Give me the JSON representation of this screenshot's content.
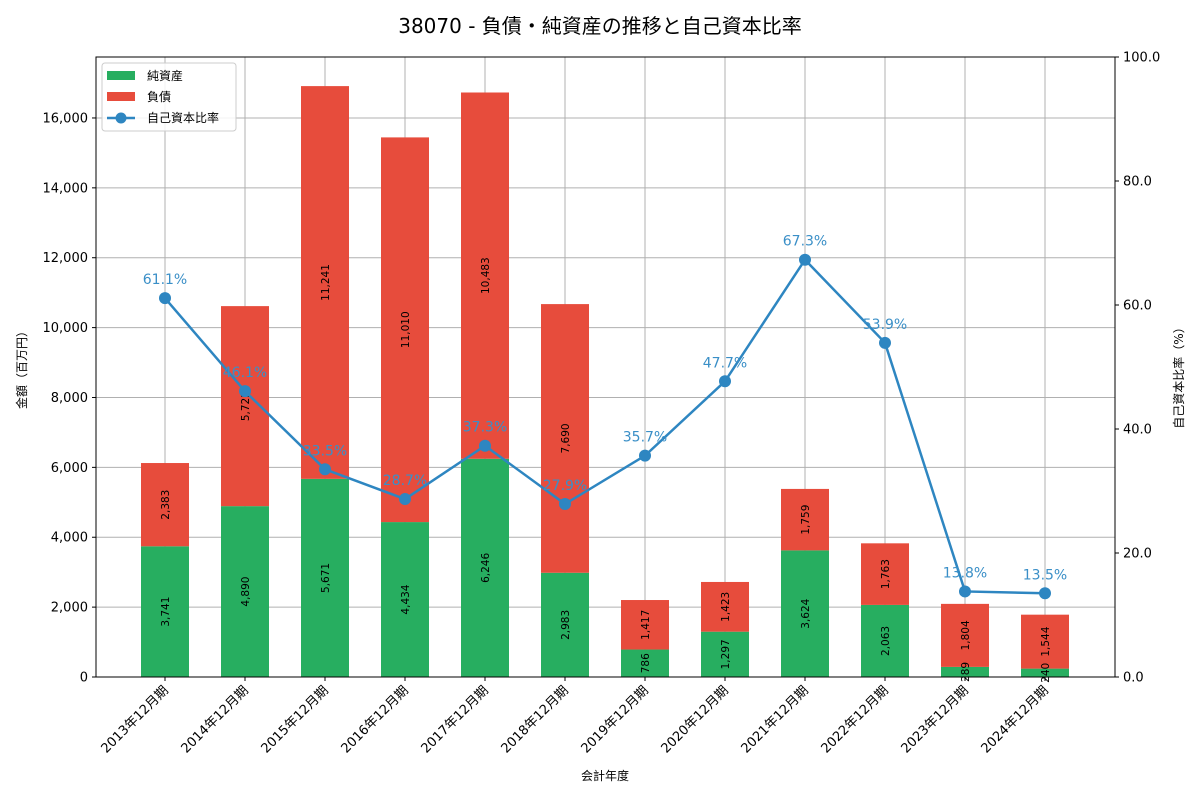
{
  "chart_data": {
    "type": "bar",
    "subtype": "stacked-bar-with-line",
    "title": "38070 - 負債・純資産の推移と自己資本比率",
    "xlabel": "会計年度",
    "ylabel": "金額（百万円）",
    "y2label": "自己資本比率（%）",
    "categories": [
      "2013年12月期",
      "2014年12月期",
      "2015年12月期",
      "2016年12月期",
      "2017年12月期",
      "2018年12月期",
      "2019年12月期",
      "2020年12月期",
      "2021年12月期",
      "2022年12月期",
      "2023年12月期",
      "2024年12月期"
    ],
    "series": [
      {
        "name": "純資産",
        "type": "bar",
        "axis": "left",
        "color": "#27ae60",
        "values": [
          3741,
          4890,
          5671,
          4434,
          6246,
          2983,
          786,
          1297,
          3624,
          2063,
          289,
          240
        ]
      },
      {
        "name": "負債",
        "type": "bar",
        "axis": "left",
        "color": "#e74c3c",
        "values": [
          2383,
          5725,
          11241,
          11010,
          10483,
          7690,
          1417,
          1423,
          1759,
          1763,
          1804,
          1544
        ]
      },
      {
        "name": "自己資本比率",
        "type": "line",
        "axis": "right",
        "color": "#2e86c1",
        "values": [
          61.1,
          46.1,
          33.5,
          28.7,
          37.3,
          27.9,
          35.7,
          47.7,
          67.3,
          53.9,
          13.8,
          13.5
        ]
      }
    ],
    "value_labels": {
      "純資産": [
        "3,741",
        "4,890",
        "5,671",
        "4,434",
        "6,246",
        "2,983",
        "786",
        "1,297",
        "3,624",
        "2,063",
        "289",
        "240"
      ],
      "負債": [
        "2,383",
        "5,725",
        "11,241",
        "11,010",
        "10,483",
        "7,690",
        "1,417",
        "1,423",
        "1,759",
        "1,763",
        "1,804",
        "1,544"
      ],
      "自己資本比率": [
        "61.1%",
        "46.1%",
        "33.5%",
        "28.7%",
        "37.3%",
        "27.9%",
        "35.7%",
        "47.7%",
        "67.3%",
        "53.9%",
        "13.8%",
        "13.5%"
      ]
    },
    "yticks": [
      "0",
      "2,000",
      "4,000",
      "6,000",
      "8,000",
      "10,000",
      "12,000",
      "14,000",
      "16,000"
    ],
    "ytick_values": [
      0,
      2000,
      4000,
      6000,
      8000,
      10000,
      12000,
      14000,
      16000
    ],
    "y2ticks": [
      "0.0",
      "20.0",
      "40.0",
      "60.0",
      "80.0",
      "100.0"
    ],
    "y2tick_values": [
      0,
      20,
      40,
      60,
      80,
      100
    ],
    "ylim": [
      0,
      17745
    ],
    "y2lim": [
      0,
      100
    ],
    "grid": true,
    "legend_position": "upper left"
  }
}
